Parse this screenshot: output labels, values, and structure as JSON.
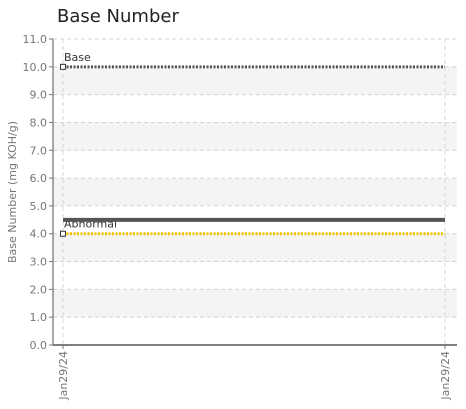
{
  "chart_data": {
    "type": "line",
    "title": "Base Number",
    "ylabel": "Base Number (mg KOH/g)",
    "xlabel": "",
    "ylim": [
      0,
      11
    ],
    "yticks": [
      "0.0",
      "1.0",
      "2.0",
      "3.0",
      "4.0",
      "5.0",
      "6.0",
      "7.0",
      "8.0",
      "9.0",
      "10.0",
      "11.0"
    ],
    "categories": [
      "Jan29/24",
      "Jan29/24"
    ],
    "grid": true,
    "series": [
      {
        "name": "Base",
        "values": [
          10.0,
          10.0
        ],
        "color": "#555555",
        "style": "dotted"
      },
      {
        "name": "Abnormal",
        "values": [
          4.0,
          4.0
        ],
        "color": "#f2c500",
        "style": "dotted"
      },
      {
        "values": [
          4.5,
          4.5
        ],
        "color": "#555555",
        "style": "solid"
      }
    ]
  }
}
